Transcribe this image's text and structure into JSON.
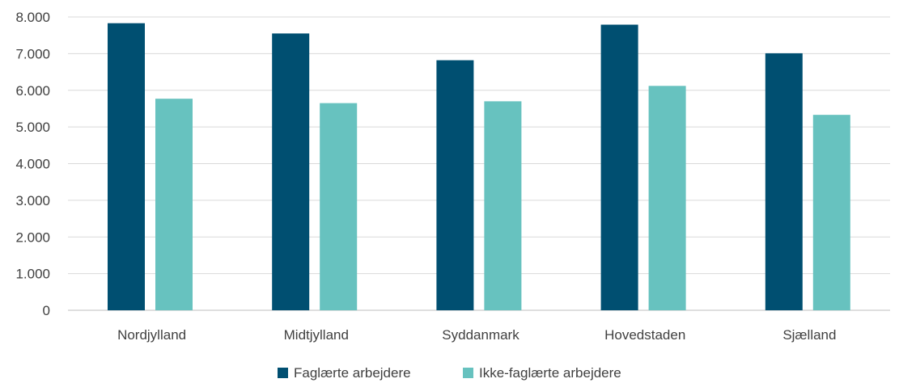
{
  "chart_data": {
    "type": "bar",
    "categories": [
      "Nordjylland",
      "Midtjylland",
      "Syddanmark",
      "Hovedstaden",
      "Sjælland"
    ],
    "series": [
      {
        "name": "Faglærte arbejdere",
        "values": [
          7830,
          7550,
          6820,
          7790,
          7010
        ],
        "color": "#004f71"
      },
      {
        "name": "Ikke-faglærte arbejdere",
        "values": [
          5770,
          5650,
          5700,
          6120,
          5330
        ],
        "color": "#67c2bf"
      }
    ],
    "ylim": [
      0,
      8000
    ],
    "yticks": [
      0,
      1000,
      2000,
      3000,
      4000,
      5000,
      6000,
      7000,
      8000
    ],
    "ytick_labels": [
      "0",
      "1.000",
      "2.000",
      "3.000",
      "4.000",
      "5.000",
      "6.000",
      "7.000",
      "8.000"
    ],
    "grid": true,
    "legend": "bottom",
    "title": "",
    "xlabel": "",
    "ylabel": ""
  }
}
